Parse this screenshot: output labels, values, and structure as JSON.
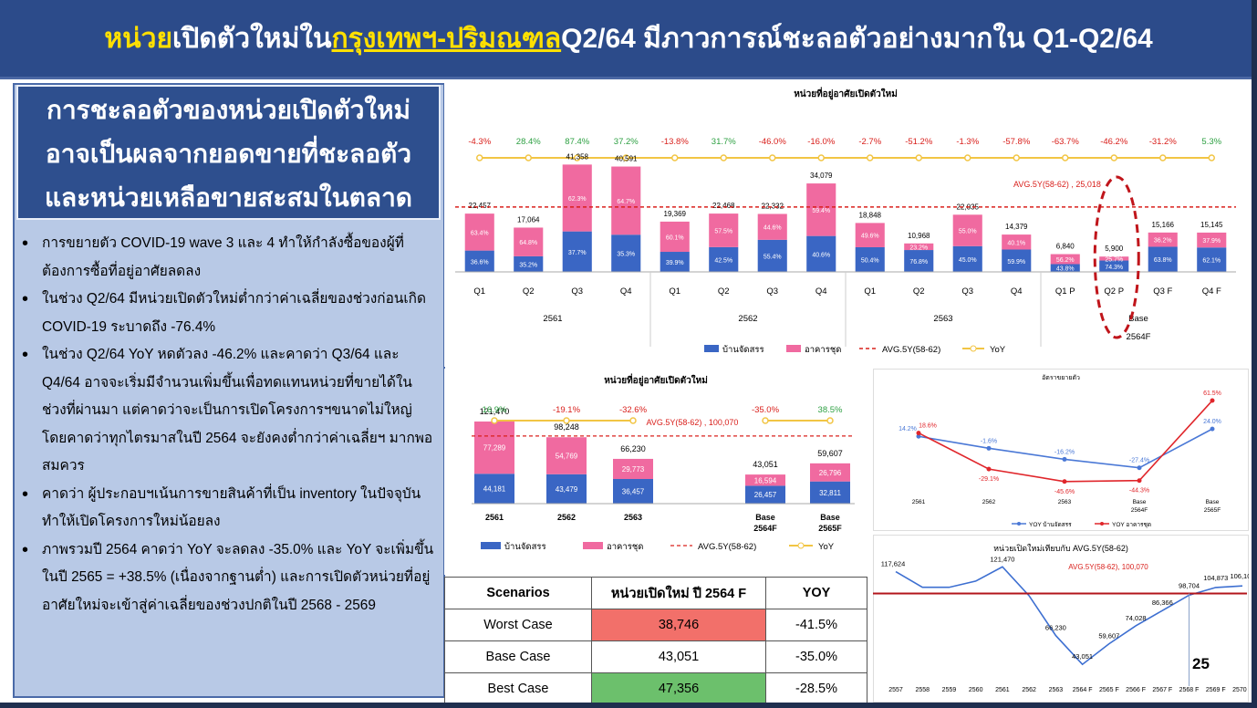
{
  "header": {
    "title_part1": "หน่วย",
    "title_part2": " เปิดตัวใหม่ใน ",
    "title_part3": "กรุงเทพฯ-ปริมณฑล",
    "title_part4": " Q2/64 มีภาวการณ์ชะลอตัวอย่างมากใน Q1-Q2/64"
  },
  "left": {
    "heading_lines": [
      "การชะลอตัวของหน่วยเปิดตัวใหม่",
      "อาจเป็นผลจากยอดขายที่ชะลอตัว",
      "และหน่วยเหลือขายสะสมในตลาด"
    ],
    "bullets": [
      "การขยายตัว COVID-19 wave 3 และ 4 ทำให้กำลังซื้อของผู้ที่ต้องการซื้อที่อยู่อาศัยลดลง",
      "ในช่วง Q2/64 มีหน่วยเปิดตัวใหม่ต่ำกว่าค่าเฉลี่ยของช่วงก่อนเกิด COVID-19 ระบาดถึง -76.4%",
      "ในช่วง Q2/64 YoY หดตัวลง -46.2% และคาดว่า Q3/64 และ Q4/64 อาจจะเริ่มมีจำนวนเพิ่มขึ้นเพื่อทดแทนหน่วยที่ขายได้ในช่วงที่ผ่านมา แต่คาดว่าจะเป็นการเปิดโครงการฯขนาดไม่ใหญ่ โดยคาดว่าทุกไตรมาสในปี 2564 จะยังคงต่ำกว่าค่าเฉลี่ยฯ มากพอสมควร",
      "คาดว่า ผู้ประกอบฯเน้นการขายสินค้าที่เป็น inventory ในปัจจุบัน ทำให้เปิดโครงการใหม่น้อยลง",
      "ภาพรวมปี 2564 คาดว่า YoY จะลดลง -35.0% และ YoY จะเพิ่มขึ้นในปี 2565 = +38.5% (เนื่องจากฐานต่ำ) และการเปิดตัวหน่วยที่อยู่อาศัยใหม่จะเข้าสู่ค่าเฉลี่ยของช่วงปกติในปี 2568 - 2569"
    ]
  },
  "colors": {
    "house": "#3a66c4",
    "condo": "#f06aa0",
    "avg": "#d9201c",
    "yoy": "#f2c544",
    "up": "#2ea043",
    "down": "#d9201c"
  },
  "chart_data": [
    {
      "type": "bar",
      "title": "หน่วยที่อยู่อาศัยเปิดตัวใหม่",
      "categories": [
        "Q1",
        "Q2",
        "Q3",
        "Q4",
        "Q1",
        "Q2",
        "Q3",
        "Q4",
        "Q1",
        "Q2",
        "Q3",
        "Q4",
        "Q1 P",
        "Q2 P",
        "Q3 F",
        "Q4 F"
      ],
      "year_groups": [
        {
          "label": "2561",
          "from": 0,
          "to": 3
        },
        {
          "label": "2562",
          "from": 4,
          "to": 7
        },
        {
          "label": "2563",
          "from": 8,
          "to": 11
        },
        {
          "label": "Base",
          "label2": "2564F",
          "from": 12,
          "to": 15
        }
      ],
      "totals": [
        22457,
        17064,
        41358,
        40591,
        19369,
        22468,
        22332,
        34079,
        18848,
        10968,
        22035,
        14379,
        6840,
        5900,
        15166,
        15145
      ],
      "total_labels": [
        "22,457",
        "17,064",
        "41,358",
        "40,591",
        "19,369",
        "22,468",
        "22,332",
        "34,079",
        "18,848",
        "10,968",
        "22,035",
        "14,379",
        "6,840",
        "5,900",
        "15,166",
        "15,145"
      ],
      "house_share_labels": [
        "36.6%",
        "35.2%",
        "37.7%",
        "35.3%",
        "39.9%",
        "42.5%",
        "55.4%",
        "40.6%",
        "50.4%",
        "76.8%",
        "45.0%",
        "59.9%",
        "43.8%",
        "74.3%",
        "63.8%",
        "62.1%"
      ],
      "condo_share_labels": [
        "63.4%",
        "64.8%",
        "62.3%",
        "64.7%",
        "60.1%",
        "57.5%",
        "44.6%",
        "59.4%",
        "49.6%",
        "23.2%",
        "55.0%",
        "40.1%",
        "56.2%",
        "25.7%",
        "36.2%",
        "37.9%"
      ],
      "yoy_labels": [
        "-4.3%",
        "28.4%",
        "87.4%",
        "37.2%",
        "-13.8%",
        "31.7%",
        "-46.0%",
        "-16.0%",
        "-2.7%",
        "-51.2%",
        "-1.3%",
        "-57.8%",
        "-63.7%",
        "-46.2%",
        "-31.2%",
        "5.3%"
      ],
      "avg_value": 25018,
      "avg_label": "AVG.5Y(58-62) ,  25,018",
      "ylim": [
        0,
        45000
      ],
      "legend": [
        "บ้านจัดสรร",
        "อาคารชุด",
        "AVG.5Y(58-62)",
        "YoY"
      ]
    },
    {
      "type": "bar",
      "title": "หน่วยที่อยู่อาศัยเปิดตัวใหม่",
      "categories": [
        "2561",
        "2562",
        "2563",
        "Base 2564F",
        "Base 2565F"
      ],
      "category_line1": [
        "2561",
        "2562",
        "2563",
        "Base",
        "Base"
      ],
      "category_line2": [
        "",
        "",
        "",
        "2564F",
        "2565F"
      ],
      "house": [
        44181,
        43479,
        36457,
        26457,
        32811
      ],
      "condo": [
        77289,
        54769,
        29773,
        16594,
        26796
      ],
      "house_labels": [
        "44,181",
        "43,479",
        "36,457",
        "26,457",
        "32,811"
      ],
      "condo_labels": [
        "77,289",
        "54,769",
        "29,773",
        "16,594",
        "26,796"
      ],
      "total_labels": [
        "121,470",
        "98,248",
        "66,230",
        "43,051",
        "59,607"
      ],
      "yoy_labels": [
        "16.9%",
        "-19.1%",
        "-32.6%",
        "-35.0%",
        "38.5%"
      ],
      "avg_value": 100070,
      "avg_label": "AVG.5Y(58-62) ,  100,070",
      "ylim": [
        0,
        135000
      ],
      "legend": [
        "บ้านจัดสรร",
        "อาคารชุด",
        "AVG.5Y(58-62)",
        "YoY"
      ]
    },
    {
      "type": "line",
      "title": "อัตราขยายตัว",
      "categories": [
        "2561",
        "2562",
        "2563",
        "Base 2564F",
        "Base 2565F"
      ],
      "category_line1": [
        "2561",
        "2562",
        "2563",
        "Base",
        "Base"
      ],
      "category_line2": [
        "",
        "",
        "",
        "2564F",
        "2565F"
      ],
      "series": [
        {
          "name": "YOY บ้านจัดสรร",
          "values": [
            14.2,
            -1.6,
            -16.2,
            -27.4,
            24.0
          ],
          "labels": [
            "14.2%",
            "-1.6%",
            "-16.2%",
            "-27.4%",
            "24.0%"
          ]
        },
        {
          "name": "YOY อาคารชุด",
          "values": [
            18.6,
            -29.1,
            -45.6,
            -44.3,
            61.5
          ],
          "labels": [
            "18.6%",
            "-29.1%",
            "-45.6%",
            "-44.3%",
            "61.5%"
          ]
        }
      ],
      "ylim": [
        -60,
        70
      ]
    },
    {
      "type": "line",
      "title": "หน่วยเปิดใหม่เทียบกับ AVG.5Y(58-62)",
      "categories": [
        "2557",
        "2558",
        "2559",
        "2560",
        "2561",
        "2562",
        "2563",
        "2564 F",
        "2565 F",
        "2566 F",
        "2567 F",
        "2568 F",
        "2569 F",
        "2570 F"
      ],
      "values": [
        117624,
        105000,
        105000,
        110000,
        121470,
        98248,
        66230,
        43051,
        59607,
        74028,
        86366,
        98704,
        104873,
        106107
      ],
      "value_labels": [
        "117,624",
        "",
        "",
        "",
        "121,470",
        "",
        "66,230",
        "43,051",
        "59,607",
        "74,028",
        "86,366",
        "98,704",
        "104,873",
        "106,107"
      ],
      "avg_value": 100070,
      "avg_label": "AVG.5Y(58-62),  100,070",
      "ylim": [
        30000,
        140000
      ]
    }
  ],
  "scenarios": {
    "headers": [
      "Scenarios",
      "หน่วยเปิดใหม่ ปี 2564 F",
      "YOY"
    ],
    "rows": [
      {
        "name": "Worst Case",
        "units": "38,746",
        "yoy": "-41.5%",
        "color": "#f2706a"
      },
      {
        "name": "Base Case",
        "units": "43,051",
        "yoy": "-35.0%",
        "color": "#ffffff"
      },
      {
        "name": "Best Case",
        "units": "47,356",
        "yoy": "-28.5%",
        "color": "#6cc06c"
      }
    ]
  },
  "page_number": "25"
}
